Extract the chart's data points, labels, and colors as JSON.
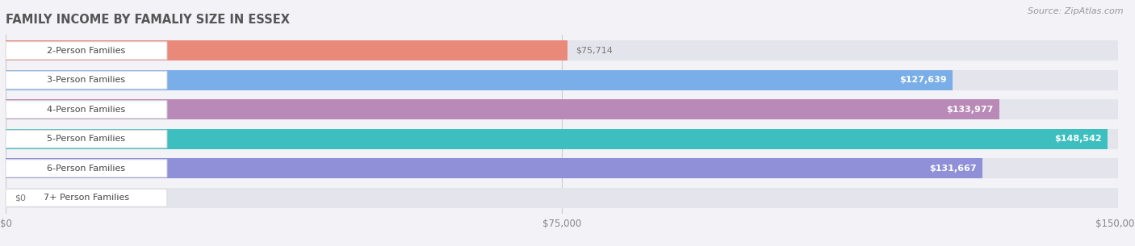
{
  "title": "FAMILY INCOME BY FAMALIY SIZE IN ESSEX",
  "source": "Source: ZipAtlas.com",
  "categories": [
    "2-Person Families",
    "3-Person Families",
    "4-Person Families",
    "5-Person Families",
    "6-Person Families",
    "7+ Person Families"
  ],
  "values": [
    75714,
    127639,
    133977,
    148542,
    131667,
    0
  ],
  "bar_colors": [
    "#E8897A",
    "#7aaee8",
    "#b98ab8",
    "#3dbfbf",
    "#9090d8",
    "#f0a0b8"
  ],
  "label_values": [
    "$75,714",
    "$127,639",
    "$133,977",
    "$148,542",
    "$131,667",
    "$0"
  ],
  "value_inside": [
    false,
    true,
    true,
    true,
    true,
    false
  ],
  "xmax": 150000,
  "xtick_labels": [
    "$0",
    "$75,000",
    "$150,000"
  ],
  "background_color": "#f2f2f7",
  "bar_bg_color": "#e4e4ec",
  "title_color": "#555555",
  "source_color": "#999999",
  "grid_color": "#cccccc"
}
